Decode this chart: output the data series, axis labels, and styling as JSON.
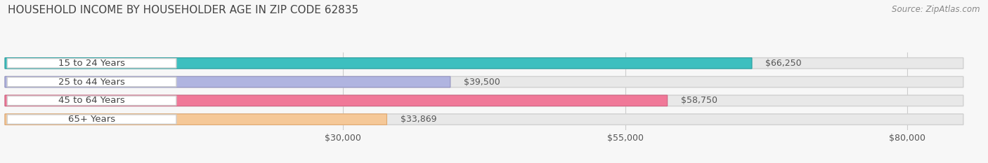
{
  "title": "HOUSEHOLD INCOME BY HOUSEHOLDER AGE IN ZIP CODE 62835",
  "source": "Source: ZipAtlas.com",
  "categories": [
    "15 to 24 Years",
    "25 to 44 Years",
    "45 to 64 Years",
    "65+ Years"
  ],
  "values": [
    66250,
    39500,
    58750,
    33869
  ],
  "bar_colors": [
    "#3dbfbf",
    "#b0b4e0",
    "#f07898",
    "#f5c898"
  ],
  "bar_edge_colors": [
    "#2aa0a0",
    "#9090c0",
    "#d06080",
    "#e0a870"
  ],
  "value_labels": [
    "$66,250",
    "$39,500",
    "$58,750",
    "$33,869"
  ],
  "x_ticks": [
    30000,
    55000,
    80000
  ],
  "x_tick_labels": [
    "$30,000",
    "$55,000",
    "$80,000"
  ],
  "x_min": 0,
  "x_max": 85000,
  "background_color": "#f7f7f7",
  "bar_background_color": "#e8e8e8",
  "title_fontsize": 11,
  "source_fontsize": 8.5,
  "label_fontsize": 9.5,
  "value_fontsize": 9,
  "tick_fontsize": 9
}
